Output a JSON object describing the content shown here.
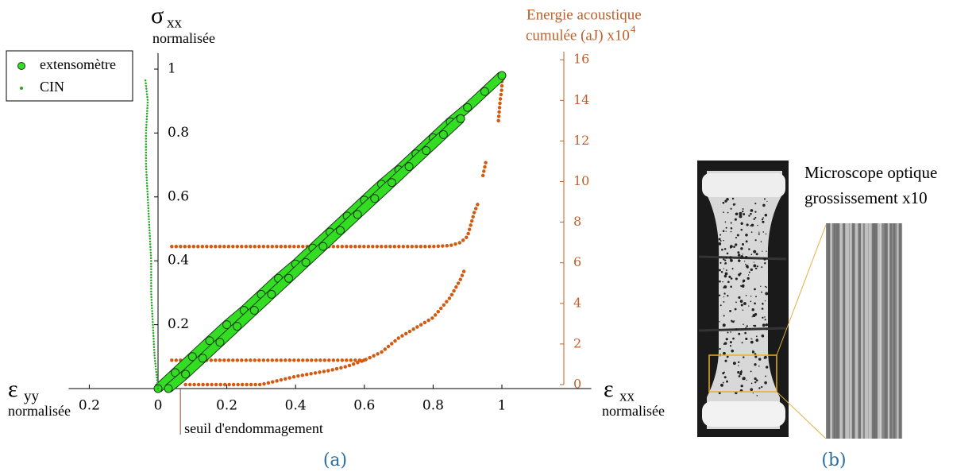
{
  "chart_data": {
    "type": "scatter",
    "y_label": {
      "symbol": "σ",
      "subscript": "xx",
      "text": "normalisée"
    },
    "x_label": {
      "symbol": "ε",
      "subscript": "xx",
      "text": "normalisée"
    },
    "x_label_left": {
      "symbol": "ε",
      "subscript": "yy",
      "text": "normalisée"
    },
    "y2_label": {
      "line1": "Energie acoustique",
      "line2": "cumulée (aJ)  x10",
      "superscript": "4"
    },
    "xlim": [
      -0.26,
      1.26
    ],
    "xticks": [
      {
        "value": -0.2,
        "label": "0.2"
      },
      0,
      0.2,
      0.4,
      0.6,
      0.8,
      1
    ],
    "ylim": [
      0,
      1.05
    ],
    "yticks": [
      0.2,
      0.4,
      0.6,
      0.8,
      1
    ],
    "y2lim": [
      0,
      16.4
    ],
    "y2ticks": [
      0,
      2,
      4,
      6,
      8,
      10,
      12,
      14,
      16
    ],
    "y2_color": "#c0602a",
    "legend": "upper left",
    "series": [
      {
        "name": "extensomètre",
        "color": "#33dd22",
        "marker": "circle",
        "parts": [
          {
            "x": [
              0,
              0.05,
              0.1,
              0.15,
              0.2,
              0.25,
              0.3,
              0.35,
              0.4,
              0.45,
              0.5,
              0.55,
              0.6,
              0.65,
              0.7,
              0.75,
              0.8,
              0.85,
              0.9,
              0.95,
              1.0
            ],
            "values": [
              0,
              0.05,
              0.1,
              0.15,
              0.2,
              0.245,
              0.295,
              0.345,
              0.39,
              0.44,
              0.49,
              0.54,
              0.59,
              0.64,
              0.685,
              0.735,
              0.785,
              0.835,
              0.88,
              0.93,
              0.98
            ]
          },
          {
            "x": [
              0.03,
              0.08,
              0.13,
              0.18,
              0.23,
              0.28,
              0.33,
              0.38,
              0.43,
              0.48,
              0.53,
              0.58,
              0.63,
              0.68,
              0.73,
              0.78,
              0.83,
              0.88
            ],
            "values": [
              0,
              0.045,
              0.095,
              0.145,
              0.195,
              0.245,
              0.295,
              0.345,
              0.395,
              0.445,
              0.495,
              0.545,
              0.595,
              0.645,
              0.695,
              0.745,
              0.795,
              0.845
            ]
          }
        ]
      },
      {
        "name": "CIN",
        "color": "#22aa22",
        "marker": "dot",
        "parts": [
          {
            "x": [
              0,
              -0.005,
              -0.01,
              -0.015,
              -0.02,
              -0.02,
              -0.025,
              -0.03,
              -0.035,
              -0.035,
              -0.03,
              -0.037
            ],
            "values": [
              0,
              0.05,
              0.1,
              0.2,
              0.3,
              0.4,
              0.5,
              0.6,
              0.7,
              0.8,
              0.9,
              0.97
            ]
          }
        ]
      }
    ],
    "y2_series": [
      {
        "axis": "y2",
        "color": "#d45a10",
        "x": [
          0.08,
          0.2,
          0.3,
          0.35,
          0.4,
          0.5,
          0.55,
          0.6,
          0.65,
          0.7,
          0.75,
          0.8,
          0.85,
          0.88,
          0.89
        ],
        "values": [
          0,
          0,
          0,
          0.2,
          0.4,
          0.7,
          0.9,
          1.2,
          1.6,
          2.3,
          2.8,
          3.3,
          4.3,
          5.2,
          5.6
        ]
      },
      {
        "axis": "y2",
        "color": "#d45a10",
        "x": [
          0.04,
          0.15,
          0.3,
          0.45,
          0.6
        ],
        "values": [
          1.2,
          1.2,
          1.2,
          1.2,
          1.2
        ]
      },
      {
        "axis": "y2",
        "color": "#d45a10",
        "x": [
          0.04,
          0.2,
          0.4,
          0.6,
          0.8,
          0.85,
          0.88,
          0.9,
          0.92,
          0.93
        ],
        "values": [
          6.8,
          6.8,
          6.8,
          6.8,
          6.8,
          6.85,
          7.0,
          7.3,
          8.5,
          8.9
        ]
      },
      {
        "axis": "y2",
        "color": "#d45a10",
        "x": [
          0.945,
          0.95,
          0.955
        ],
        "values": [
          10.3,
          10.7,
          11.1
        ]
      },
      {
        "axis": "y2",
        "color": "#d45a10",
        "x": [
          0.99,
          0.995,
          1.0,
          1.0
        ],
        "values": [
          13.0,
          14.0,
          14.6,
          15.3
        ]
      }
    ],
    "annotations": [
      {
        "text": "seuil d'endommagement",
        "x": 0.065
      }
    ],
    "panel_label": "(a)"
  },
  "figure_b": {
    "panel_label": "(b)",
    "caption_line1": "Microscope optique",
    "caption_line2": "grossissement x10"
  }
}
